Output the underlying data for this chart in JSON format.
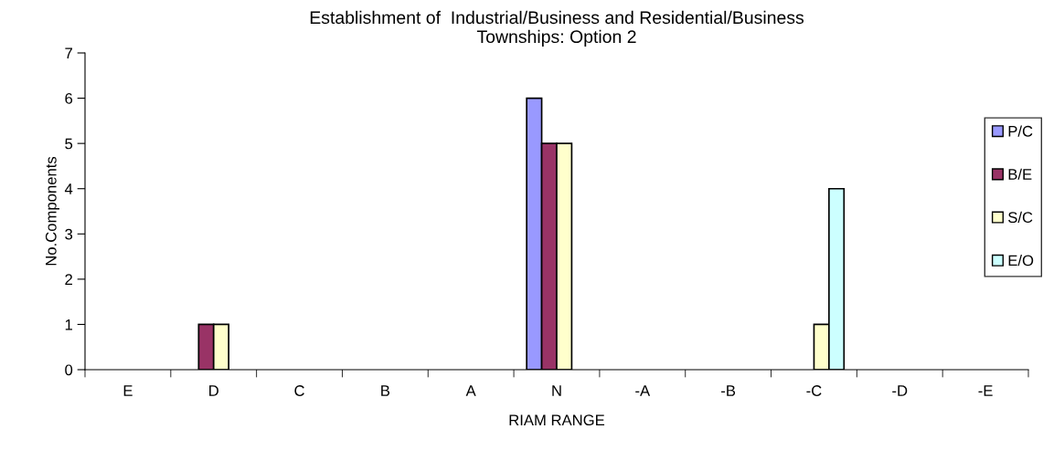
{
  "chart_data": {
    "type": "bar",
    "title": "Establishment of  Industrial/Business and Residential/Business\nTownships: Option 2",
    "xlabel": "RIAM RANGE",
    "ylabel": "No.Components",
    "categories": [
      "E",
      "D",
      "C",
      "B",
      "A",
      "N",
      "-A",
      "-B",
      "-C",
      "-D",
      "-E"
    ],
    "series": [
      {
        "name": "P/C",
        "color": "#9999ff",
        "values": [
          null,
          null,
          null,
          null,
          null,
          6,
          null,
          null,
          null,
          null,
          null
        ]
      },
      {
        "name": "B/E",
        "color": "#993366",
        "values": [
          null,
          1,
          null,
          null,
          null,
          5,
          null,
          null,
          null,
          null,
          null
        ]
      },
      {
        "name": "S/C",
        "color": "#ffffcc",
        "values": [
          null,
          1,
          null,
          null,
          null,
          5,
          null,
          null,
          1,
          null,
          null
        ]
      },
      {
        "name": "E/O",
        "color": "#ccffff",
        "values": [
          null,
          null,
          null,
          null,
          null,
          null,
          null,
          null,
          4,
          null,
          null
        ]
      }
    ],
    "ylim": [
      0,
      7
    ],
    "yticks": [
      0,
      1,
      2,
      3,
      4,
      5,
      6,
      7
    ],
    "grid": false,
    "legend": "right"
  }
}
